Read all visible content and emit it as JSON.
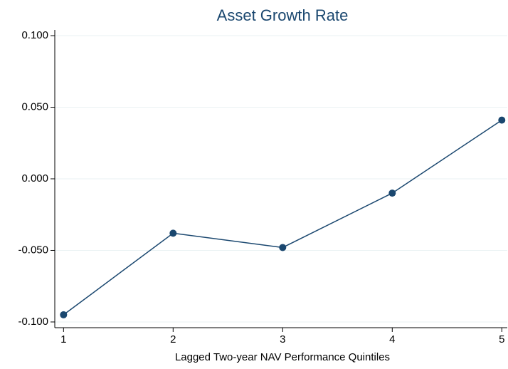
{
  "chart_data": {
    "type": "line",
    "title": "Asset Growth Rate",
    "x_label": "Lagged Two-year NAV Performance Quintiles",
    "x": [
      1,
      2,
      3,
      4,
      5
    ],
    "values": [
      -0.095,
      -0.038,
      -0.048,
      -0.01,
      0.041
    ],
    "color": "#1a476f",
    "xlim": [
      0.92,
      5.05
    ],
    "xticks": [
      1,
      2,
      3,
      4,
      5
    ],
    "ylim": [
      -0.104,
      0.104
    ],
    "yticks": [
      {
        "value": -0.1,
        "label": "-0.100"
      },
      {
        "value": -0.05,
        "label": "-0.050"
      },
      {
        "value": 0,
        "label": "0.000"
      },
      {
        "value": 0.05,
        "label": "0.050"
      },
      {
        "value": 0.1,
        "label": "0.100"
      }
    ],
    "grid": true
  }
}
